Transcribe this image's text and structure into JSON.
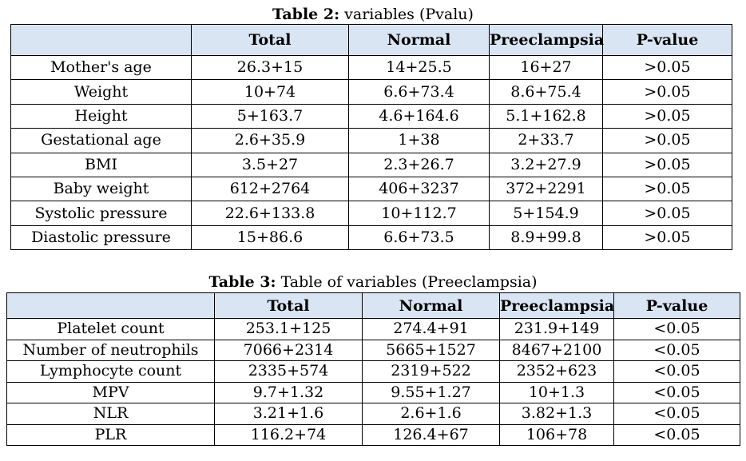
{
  "table2": {
    "caption_bold": "Table 2:",
    "caption_rest": " variables (Pvalu)",
    "headers": [
      "",
      "Total",
      "Normal",
      "Preeclampsia",
      "P-value"
    ],
    "rows": [
      [
        "Mother's age",
        "26.3+15",
        "14+25.5",
        "16+27",
        ">0.05"
      ],
      [
        "Weight",
        "10+74",
        "6.6+73.4",
        "8.6+75.4",
        ">0.05"
      ],
      [
        "Height",
        "5+163.7",
        "4.6+164.6",
        "5.1+162.8",
        ">0.05"
      ],
      [
        "Gestational age",
        "2.6+35.9",
        "1+38",
        "2+33.7",
        ">0.05"
      ],
      [
        "BMI",
        "3.5+27",
        "2.3+26.7",
        "3.2+27.9",
        ">0.05"
      ],
      [
        "Baby weight",
        "612+2764",
        "406+3237",
        "372+2291",
        ">0.05"
      ],
      [
        "Systolic pressure",
        "22.6+133.8",
        "10+112.7",
        "5+154.9",
        ">0.05"
      ],
      [
        "Diastolic pressure",
        "15+86.6",
        "6.6+73.5",
        "8.9+99.8",
        ">0.05"
      ]
    ]
  },
  "table3": {
    "caption_bold": "Table 3:",
    "caption_rest": " Table of variables (Preeclampsia)",
    "headers": [
      "",
      "Total",
      "Normal",
      "Preeclampsia",
      "P-value"
    ],
    "rows": [
      [
        "Platelet count",
        "253.1+125",
        "274.4+91",
        "231.9+149",
        "<0.05"
      ],
      [
        "Number of neutrophils",
        "7066+2314",
        "5665+1527",
        "8467+2100",
        "<0.05"
      ],
      [
        "Lymphocyte count",
        "2335+574",
        "2319+522",
        "2352+623",
        "<0.05"
      ],
      [
        "MPV",
        "9.7+1.32",
        "9.55+1.27",
        "10+1.3",
        "<0.05"
      ],
      [
        "NLR",
        "3.21+1.6",
        "2.6+1.6",
        "3.82+1.3",
        "<0.05"
      ],
      [
        "PLR",
        "116.2+74",
        "126.4+67",
        "106+78",
        "<0.05"
      ]
    ]
  }
}
